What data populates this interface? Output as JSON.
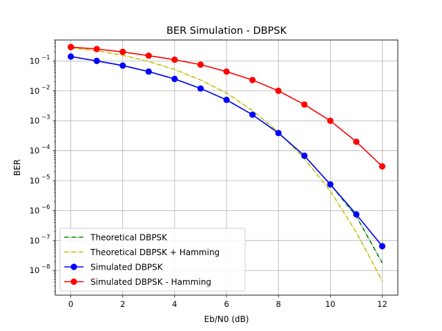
{
  "chart_data": {
    "type": "line",
    "title": "BER Simulation - DBPSK",
    "xlabel": "Eb/N0 (dB)",
    "ylabel": "BER",
    "yscale": "log",
    "xlim": [
      -0.6,
      12.6
    ],
    "ylim": [
      1.5e-09,
      0.5
    ],
    "grid": true,
    "legend_position": "lower-left",
    "x_ticks": [
      0,
      2,
      4,
      6,
      8,
      10,
      12
    ],
    "y_ticks": [
      {
        "value": 0.1,
        "exp": "−1"
      },
      {
        "value": 0.01,
        "exp": "−2"
      },
      {
        "value": 0.001,
        "exp": "−3"
      },
      {
        "value": 0.0001,
        "exp": "−4"
      },
      {
        "value": 1e-05,
        "exp": "−5"
      },
      {
        "value": 1e-06,
        "exp": "−6"
      },
      {
        "value": 1e-07,
        "exp": "−7"
      },
      {
        "value": 1e-08,
        "exp": "−8"
      }
    ],
    "y_tick_base": "10",
    "x": [
      0,
      1,
      2,
      3,
      4,
      5,
      6,
      7,
      8,
      9,
      10,
      11,
      12
    ],
    "series": [
      {
        "name": "Theoretical DBPSK",
        "color": "#008000",
        "dash": "dashdot",
        "marker": false,
        "values": [
          0.14,
          0.1,
          0.07,
          0.044,
          0.025,
          0.012,
          0.005,
          0.0016,
          0.00039,
          6.8e-05,
          7.5e-06,
          6.5e-07,
          1.8e-08
        ]
      },
      {
        "name": "Theoretical DBPSK + Hamming",
        "color": "#bfbf00",
        "dash": "dashdot",
        "marker": false,
        "values": [
          0.27,
          0.22,
          0.155,
          0.095,
          0.052,
          0.023,
          0.0085,
          0.0022,
          0.00042,
          5.5e-05,
          4.5e-06,
          1.9e-07,
          4.5e-09
        ]
      },
      {
        "name": "Simulated DBPSK",
        "color": "#0000ff",
        "dash": "solid",
        "marker": true,
        "values": [
          0.14,
          0.1,
          0.07,
          0.044,
          0.025,
          0.012,
          0.005,
          0.0016,
          0.00039,
          6.8e-05,
          7.5e-06,
          7.5e-07,
          6.5e-08
        ]
      },
      {
        "name": "Simulated DBPSK - Hamming",
        "color": "#ff0000",
        "dash": "solid",
        "marker": true,
        "values": [
          0.29,
          0.25,
          0.2,
          0.15,
          0.11,
          0.075,
          0.044,
          0.023,
          0.01,
          0.0035,
          0.001,
          0.0002,
          3e-05
        ]
      }
    ]
  }
}
